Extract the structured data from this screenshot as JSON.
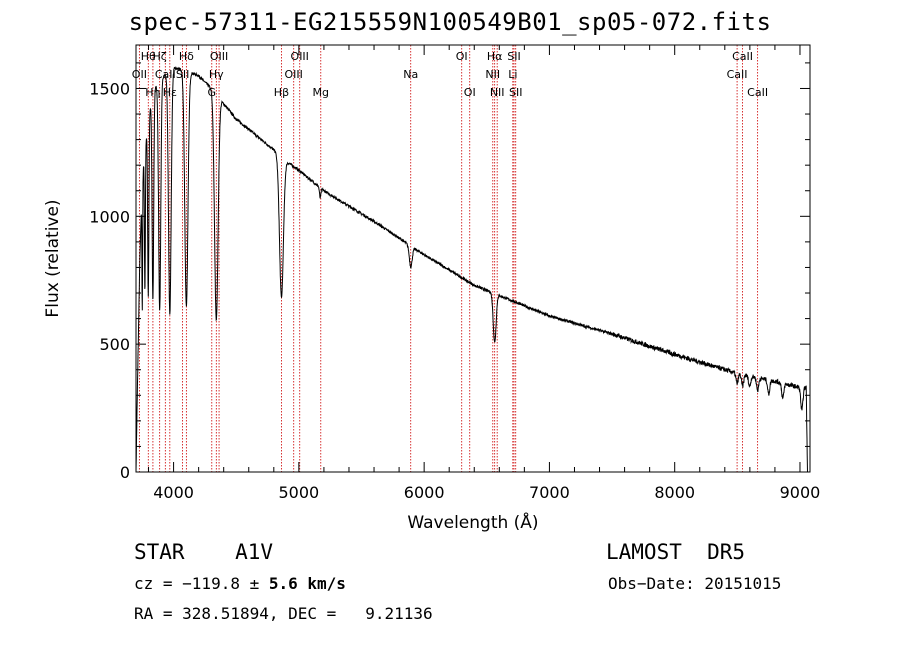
{
  "title": "spec-57311-EG215559N100549B01_sp05-072.fits",
  "info": {
    "class_line": "STAR    A1V",
    "survey": "LAMOST  DR5",
    "cz_prefix": "cz = −119.8 ± ",
    "cz_bold": "5.6 km/s",
    "obs_date": "Obs−Date: 20151015",
    "coords": "RA = 328.51894, DEC =   9.21136"
  },
  "chart_data": {
    "type": "line",
    "title": "spec-57311-EG215559N100549B01_sp05-072.fits",
    "xlabel": "Wavelength (Å)",
    "ylabel": "Flux (relative)",
    "xlim": [
      3700,
      9080
    ],
    "ylim": [
      0,
      1670
    ],
    "x_ticks": [
      4000,
      5000,
      6000,
      7000,
      8000,
      9000
    ],
    "y_ticks": [
      0,
      500,
      1000,
      1500
    ],
    "grid": false,
    "line_markers": [
      {
        "label": "Hθ",
        "x": 3798,
        "row": 0
      },
      {
        "label": "OII",
        "x": 3727,
        "row": 1
      },
      {
        "label": "Hη",
        "x": 3835,
        "row": 2
      },
      {
        "label": "Hζ",
        "x": 3889,
        "row": 0
      },
      {
        "label": "CaII",
        "x": 3934,
        "row": 1
      },
      {
        "label": "Hε",
        "x": 3970,
        "row": 2
      },
      {
        "label": "Hδ",
        "x": 4102,
        "row": 0
      },
      {
        "label": "SII",
        "x": 4072,
        "row": 1
      },
      {
        "label": "OIII",
        "x": 4363,
        "row": 0
      },
      {
        "label": "Hγ",
        "x": 4341,
        "row": 1
      },
      {
        "label": "G",
        "x": 4305,
        "row": 2
      },
      {
        "label": "Hβ",
        "x": 4861,
        "row": 2
      },
      {
        "label": "OIII",
        "x": 5007,
        "row": 0
      },
      {
        "label": "OIII",
        "x": 4959,
        "row": 1
      },
      {
        "label": "Mg",
        "x": 5175,
        "row": 2
      },
      {
        "label": "Na",
        "x": 5893,
        "row": 1
      },
      {
        "label": "OI",
        "x": 6300,
        "row": 0
      },
      {
        "label": "OI",
        "x": 6364,
        "row": 2
      },
      {
        "label": "Hα",
        "x": 6563,
        "row": 0
      },
      {
        "label": "NII",
        "x": 6548,
        "row": 1
      },
      {
        "label": "NII",
        "x": 6583,
        "row": 2
      },
      {
        "label": "SII",
        "x": 6717,
        "row": 0
      },
      {
        "label": "Li",
        "x": 6708,
        "row": 1
      },
      {
        "label": "SII",
        "x": 6731,
        "row": 2
      },
      {
        "label": "CaII",
        "x": 8542,
        "row": 0
      },
      {
        "label": "CaII",
        "x": 8498,
        "row": 1
      },
      {
        "label": "CaII",
        "x": 8662,
        "row": 2
      }
    ],
    "continuum": [
      [
        3700,
        0
      ],
      [
        3710,
        300
      ],
      [
        3720,
        560
      ],
      [
        3730,
        820
      ],
      [
        3750,
        1150
      ],
      [
        3800,
        1400
      ],
      [
        3850,
        1500
      ],
      [
        3900,
        1540
      ],
      [
        4000,
        1580
      ],
      [
        4100,
        1570
      ],
      [
        4200,
        1550
      ],
      [
        4300,
        1500
      ],
      [
        4400,
        1440
      ],
      [
        4500,
        1380
      ],
      [
        4600,
        1340
      ],
      [
        4700,
        1300
      ],
      [
        4800,
        1260
      ],
      [
        4900,
        1215
      ],
      [
        5000,
        1180
      ],
      [
        5200,
        1100
      ],
      [
        5400,
        1040
      ],
      [
        5600,
        980
      ],
      [
        5800,
        915
      ],
      [
        5900,
        880
      ],
      [
        6000,
        850
      ],
      [
        6200,
        790
      ],
      [
        6400,
        730
      ],
      [
        6600,
        690
      ],
      [
        6800,
        650
      ],
      [
        7000,
        610
      ],
      [
        7500,
        540
      ],
      [
        8000,
        460
      ],
      [
        8500,
        385
      ],
      [
        8800,
        355
      ],
      [
        9000,
        330
      ],
      [
        9050,
        330
      ],
      [
        9060,
        0
      ]
    ],
    "absorption_lines": [
      {
        "x": 3750,
        "depth": 520,
        "width": 4
      },
      {
        "x": 3771,
        "depth": 560,
        "width": 5
      },
      {
        "x": 3798,
        "depth": 700,
        "width": 7
      },
      {
        "x": 3835,
        "depth": 800,
        "width": 9
      },
      {
        "x": 3889,
        "depth": 900,
        "width": 12
      },
      {
        "x": 3970,
        "depth": 950,
        "width": 15
      },
      {
        "x": 4102,
        "depth": 920,
        "width": 18
      },
      {
        "x": 4341,
        "depth": 880,
        "width": 20
      },
      {
        "x": 4861,
        "depth": 550,
        "width": 22
      },
      {
        "x": 5170,
        "depth": 40,
        "width": 8
      },
      {
        "x": 5893,
        "depth": 80,
        "width": 16
      },
      {
        "x": 6563,
        "depth": 190,
        "width": 16
      },
      {
        "x": 8498,
        "depth": 40,
        "width": 12
      },
      {
        "x": 8542,
        "depth": 45,
        "width": 12
      },
      {
        "x": 8598,
        "depth": 40,
        "width": 12
      },
      {
        "x": 8662,
        "depth": 50,
        "width": 12
      },
      {
        "x": 8750,
        "depth": 55,
        "width": 12
      },
      {
        "x": 8863,
        "depth": 60,
        "width": 12
      },
      {
        "x": 9015,
        "depth": 90,
        "width": 12
      }
    ],
    "colors": {
      "spectrum": "#000000",
      "markers": "#cc0000",
      "axes": "#000000"
    }
  }
}
